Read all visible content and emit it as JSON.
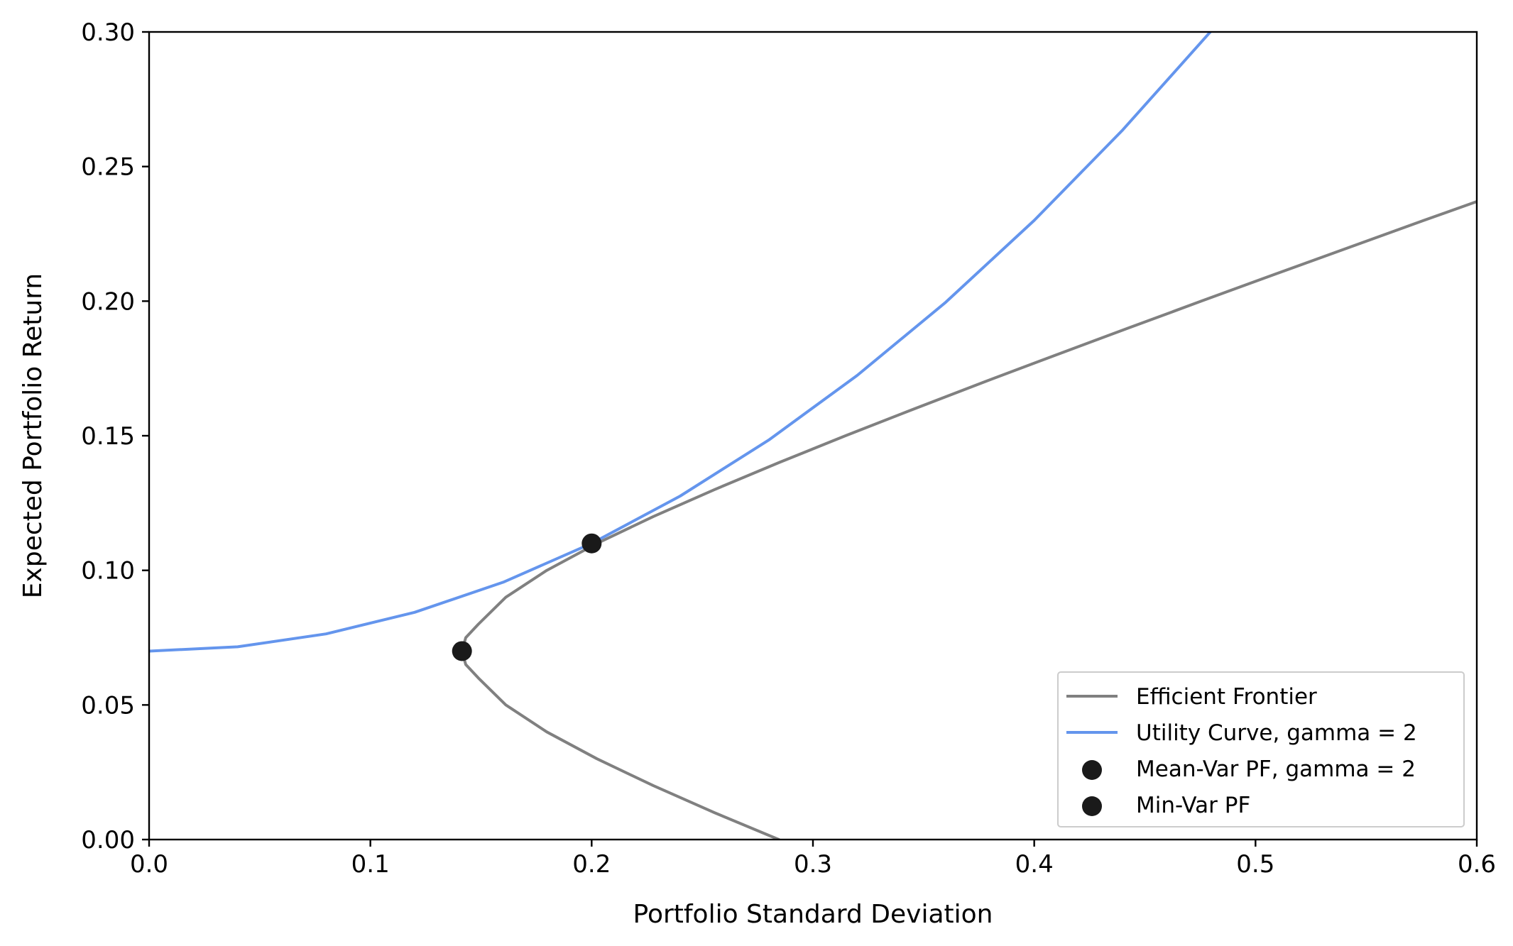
{
  "chart_data": {
    "type": "line",
    "title": "",
    "xlabel": "Portfolio Standard Deviation",
    "ylabel": "Expected Portfolio Return",
    "xlim": [
      0.0,
      0.6
    ],
    "ylim": [
      0.0,
      0.3
    ],
    "xticks": [
      0.0,
      0.1,
      0.2,
      0.3,
      0.4,
      0.5,
      0.6
    ],
    "xtick_labels": [
      "0.0",
      "0.1",
      "0.2",
      "0.3",
      "0.4",
      "0.5",
      "0.6"
    ],
    "yticks": [
      0.0,
      0.05,
      0.1,
      0.15,
      0.2,
      0.25,
      0.3
    ],
    "ytick_labels": [
      "0.00",
      "0.05",
      "0.10",
      "0.15",
      "0.20",
      "0.25",
      "0.30"
    ],
    "grid": false,
    "legend_position": "lower-right",
    "series": [
      {
        "name": "Efficient Frontier",
        "kind": "line",
        "color": "#808080",
        "x": [
          0.2846,
          0.2555,
          0.2279,
          0.2024,
          0.1797,
          0.1612,
          0.1488,
          0.1431,
          0.1414,
          0.1431,
          0.1488,
          0.1612,
          0.1797,
          0.2024,
          0.2279,
          0.2555,
          0.2846,
          0.3147,
          0.3458,
          0.3775,
          0.4098,
          0.4425,
          0.4755,
          0.5088,
          0.5424,
          0.5761,
          0.6
        ],
        "y": [
          0.0,
          0.01,
          0.02,
          0.03,
          0.04,
          0.05,
          0.06,
          0.065,
          0.07,
          0.075,
          0.08,
          0.09,
          0.1,
          0.11,
          0.12,
          0.13,
          0.14,
          0.15,
          0.16,
          0.17,
          0.18,
          0.19,
          0.2,
          0.21,
          0.22,
          0.23,
          0.237
        ]
      },
      {
        "name": "Utility Curve, gamma = 2",
        "kind": "line",
        "color": "#6495ED",
        "x": [
          0.0,
          0.04,
          0.08,
          0.12,
          0.16,
          0.2,
          0.24,
          0.28,
          0.32,
          0.36,
          0.4,
          0.44,
          0.48
        ],
        "y": [
          0.07,
          0.0716,
          0.0764,
          0.0844,
          0.0956,
          0.11,
          0.1276,
          0.1484,
          0.1724,
          0.1996,
          0.23,
          0.2636,
          0.3004
        ]
      },
      {
        "name": "Mean-Var PF, gamma = 2",
        "kind": "scatter",
        "color": "#1a1a1a",
        "x": [
          0.2
        ],
        "y": [
          0.11
        ]
      },
      {
        "name": "Min-Var PF",
        "kind": "scatter",
        "color": "#1a1a1a",
        "x": [
          0.1414
        ],
        "y": [
          0.07
        ]
      }
    ]
  }
}
